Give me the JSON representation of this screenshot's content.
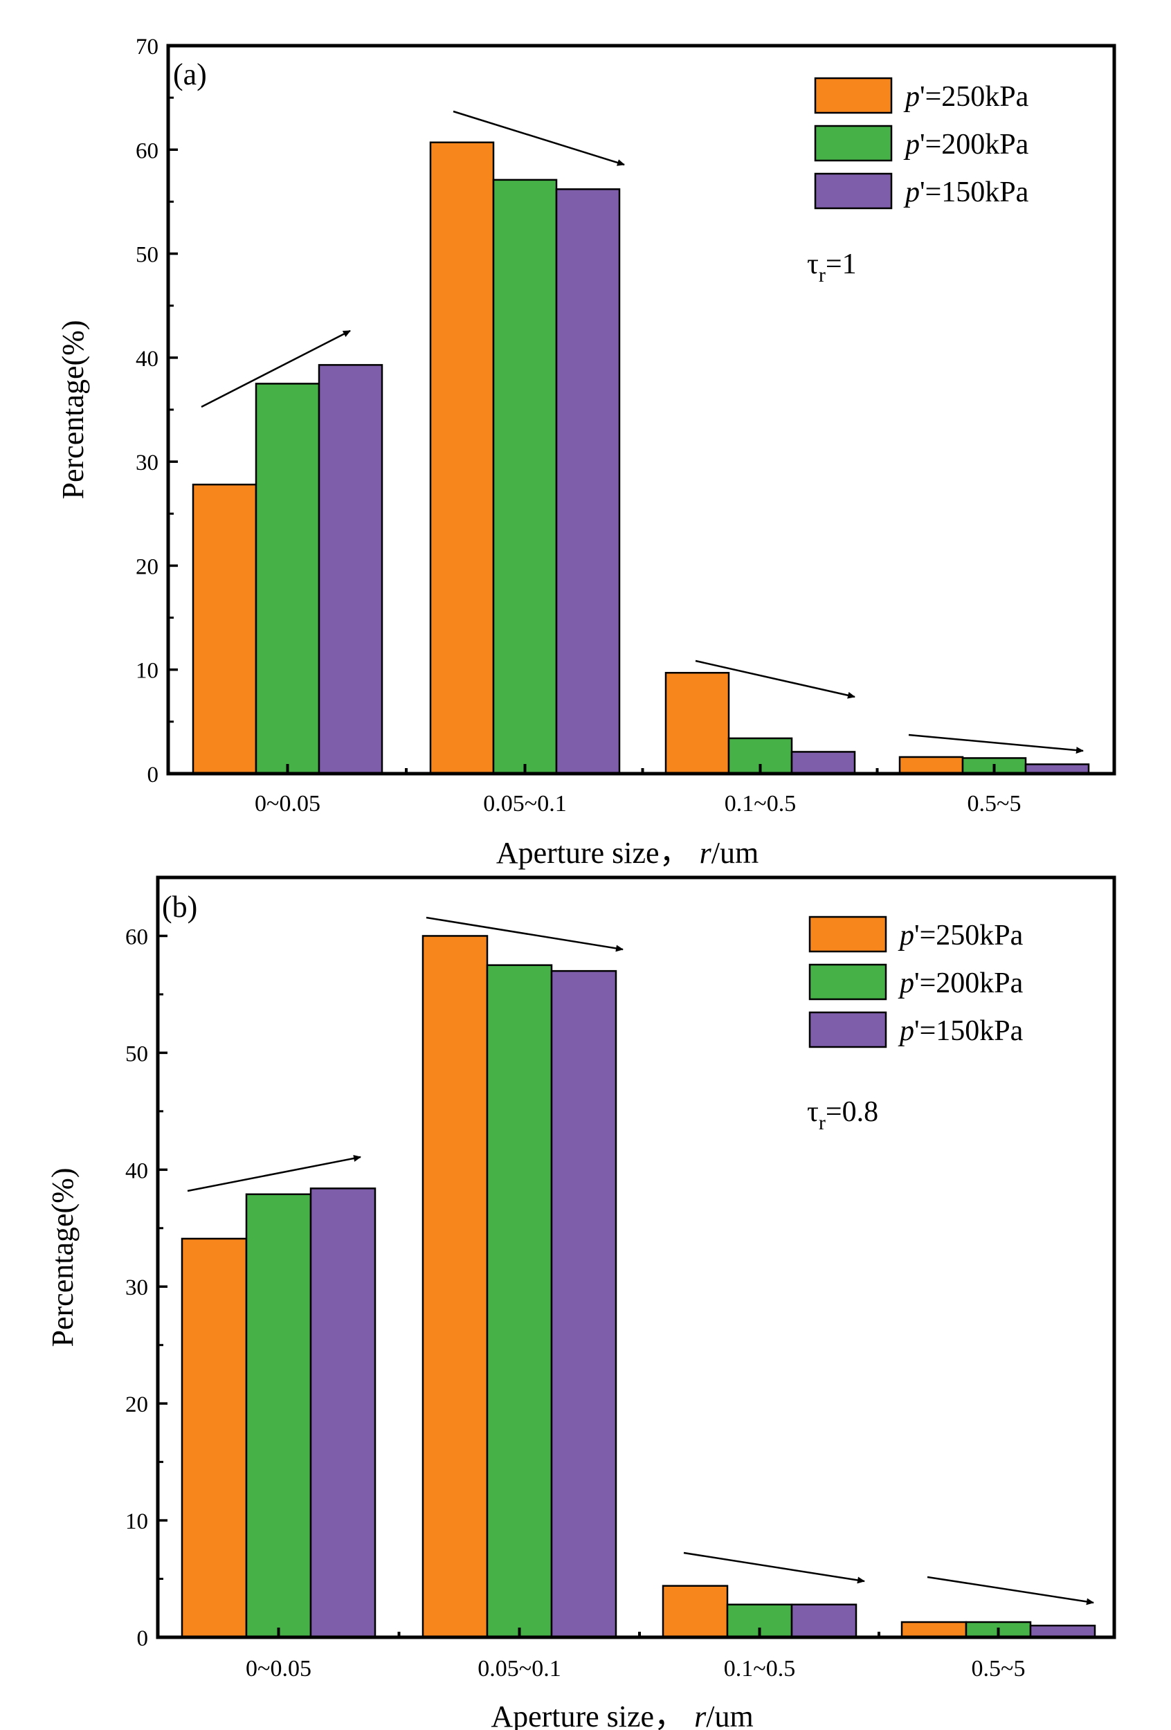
{
  "colors": {
    "p250": "#F7861C",
    "p200": "#45B147",
    "p150": "#7E5EAA",
    "axis": "#000000"
  },
  "chart_data": [
    {
      "type": "bar",
      "panel_label": "(a)",
      "categories": [
        "0~0.05",
        "0.05~0.1",
        "0.1~0.5",
        "0.5~5"
      ],
      "series": [
        {
          "name": "p'=250kPa",
          "prefix": "p",
          "suffix": "'=250kPa",
          "color_key": "p250",
          "values": [
            27.8,
            60.7,
            9.7,
            1.6
          ]
        },
        {
          "name": "p'=200kPa",
          "prefix": "p",
          "suffix": "'=200kPa",
          "color_key": "p200",
          "values": [
            37.5,
            57.1,
            3.4,
            1.5
          ]
        },
        {
          "name": "p'=150kPa",
          "prefix": "p",
          "suffix": "'=150kPa",
          "color_key": "p150",
          "values": [
            39.3,
            56.2,
            2.1,
            0.9
          ]
        }
      ],
      "ylim": [
        0,
        70
      ],
      "yticks": [
        0,
        10,
        20,
        30,
        40,
        50,
        60,
        70
      ],
      "ylabel": "Percentage(%)",
      "xlabel_prefix": "Aperture size，",
      "xlabel_var": "r",
      "xlabel_unit": "/um",
      "annotation": {
        "main": "τ",
        "sub": "r",
        "rest": "=1"
      },
      "legend": "top-right",
      "trend_arrows": true
    },
    {
      "type": "bar",
      "panel_label": "(b)",
      "categories": [
        "0~0.05",
        "0.05~0.1",
        "0.1~0.5",
        "0.5~5"
      ],
      "series": [
        {
          "name": "p'=250kPa",
          "prefix": "p",
          "suffix": "'=250kPa",
          "color_key": "p250",
          "values": [
            34.1,
            60.0,
            4.4,
            1.3
          ]
        },
        {
          "name": "p'=200kPa",
          "prefix": "p",
          "suffix": "'=200kPa",
          "color_key": "p200",
          "values": [
            37.9,
            57.5,
            2.8,
            1.3
          ]
        },
        {
          "name": "p'=150kPa",
          "prefix": "p",
          "suffix": "'=150kPa",
          "color_key": "p150",
          "values": [
            38.4,
            57.0,
            2.8,
            1.0
          ]
        }
      ],
      "ylim": [
        0,
        65
      ],
      "yticks": [
        0,
        10,
        20,
        30,
        40,
        50,
        60
      ],
      "ylabel": "Percentage(%)",
      "xlabel_prefix": "Aperture size，",
      "xlabel_var": "r",
      "xlabel_unit": "/um",
      "annotation": {
        "main": "τ",
        "sub": "r",
        "rest": "=0.8"
      },
      "legend": "top-right",
      "trend_arrows": true
    }
  ]
}
